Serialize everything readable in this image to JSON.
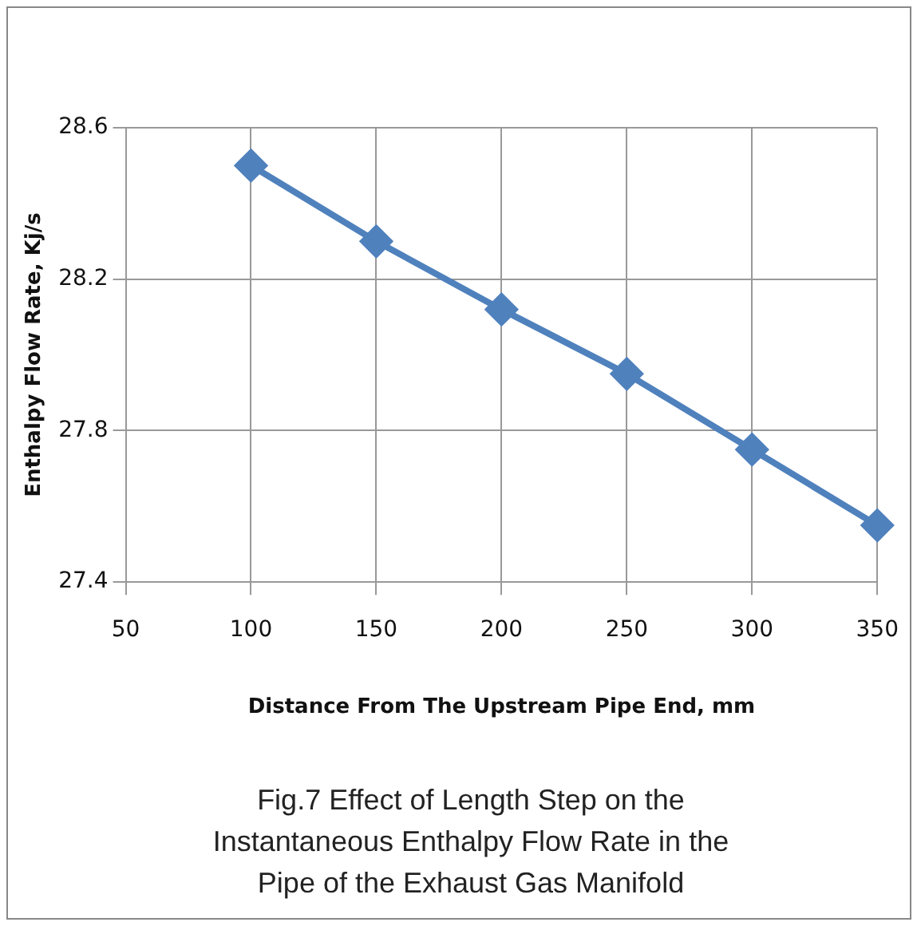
{
  "chart_data": {
    "type": "line",
    "xlabel": "Distance From The Upstream Pipe End, mm",
    "ylabel": "Enthalpy Flow Rate, Kj/s",
    "x": [
      100,
      150,
      200,
      250,
      300,
      350
    ],
    "series": [
      {
        "color": "#4f81bd",
        "values": [
          28.5,
          28.3,
          28.12,
          27.95,
          27.75,
          27.55
        ]
      }
    ],
    "xlim": [
      50,
      350
    ],
    "xticks": [
      50,
      100,
      150,
      200,
      250,
      300,
      350
    ],
    "ylim": [
      27.4,
      28.6
    ],
    "yticks": [
      27.4,
      27.8,
      28.2,
      28.6
    ],
    "grid": true,
    "legend": false,
    "marker": "diamond",
    "line_style": "solid",
    "annotations": [
      "Fig.7 Effect of Length Step on the Instantaneous Enthalpy Flow Rate in the Pipe of the Exhaust Gas Manifold"
    ]
  }
}
